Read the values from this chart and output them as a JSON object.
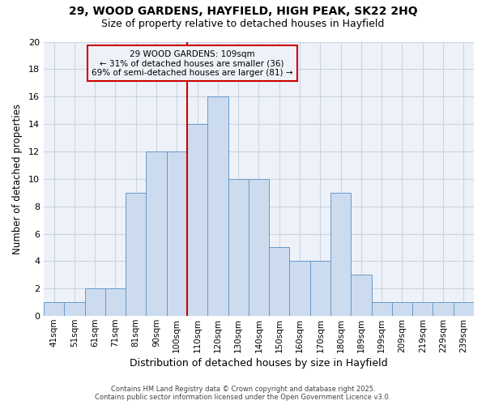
{
  "title1": "29, WOOD GARDENS, HAYFIELD, HIGH PEAK, SK22 2HQ",
  "title2": "Size of property relative to detached houses in Hayfield",
  "xlabel": "Distribution of detached houses by size in Hayfield",
  "ylabel": "Number of detached properties",
  "categories": [
    "41sqm",
    "51sqm",
    "61sqm",
    "71sqm",
    "81sqm",
    "90sqm",
    "100sqm",
    "110sqm",
    "120sqm",
    "130sqm",
    "140sqm",
    "150sqm",
    "160sqm",
    "170sqm",
    "180sqm",
    "189sqm",
    "199sqm",
    "209sqm",
    "219sqm",
    "229sqm",
    "239sqm"
  ],
  "values": [
    1,
    1,
    2,
    2,
    9,
    12,
    12,
    14,
    16,
    10,
    10,
    5,
    4,
    4,
    9,
    3,
    1,
    1,
    1,
    1,
    1
  ],
  "bar_color": "#ccdcee",
  "bar_edge_color": "#6699cc",
  "grid_color": "#c8d4e4",
  "bg_color": "#ffffff",
  "plot_bg_color": "#eef2f8",
  "vline_color": "#cc0000",
  "annotation_lines": [
    "29 WOOD GARDENS: 109sqm",
    "← 31% of detached houses are smaller (36)",
    "69% of semi-detached houses are larger (81) →"
  ],
  "annotation_box_color": "#cc0000",
  "footer1": "Contains HM Land Registry data © Crown copyright and database right 2025.",
  "footer2": "Contains public sector information licensed under the Open Government Licence v3.0.",
  "ylim": [
    0,
    20
  ],
  "yticks": [
    0,
    2,
    4,
    6,
    8,
    10,
    12,
    14,
    16,
    18,
    20
  ]
}
